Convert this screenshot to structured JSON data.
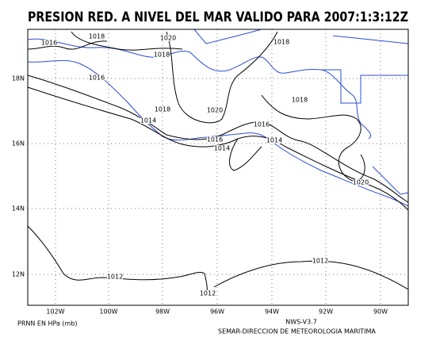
{
  "header": {
    "title": "PRESION RED. A NIVEL DEL MAR VALIDO PARA 2007:1:3:12Z"
  },
  "lat_labels": [
    "18N",
    "16N",
    "14N",
    "12N"
  ],
  "lon_labels": [
    "102W",
    "100W",
    "98W",
    "96W",
    "94W",
    "92W",
    "90W"
  ],
  "contour_labels": [
    "1016",
    "1018",
    "1020",
    "1018",
    "1016",
    "1018",
    "1018",
    "1018",
    "1020",
    "1014",
    "1016",
    "1016",
    "1014",
    "1014",
    "1020",
    "1012",
    "1012",
    "1012"
  ],
  "footer": {
    "units": "PRNN EN HPa (mb)",
    "version": "NWS-V3.7",
    "source": "SEMAR-DIRECCION DE METEOROLOGIA MARITIMA"
  }
}
